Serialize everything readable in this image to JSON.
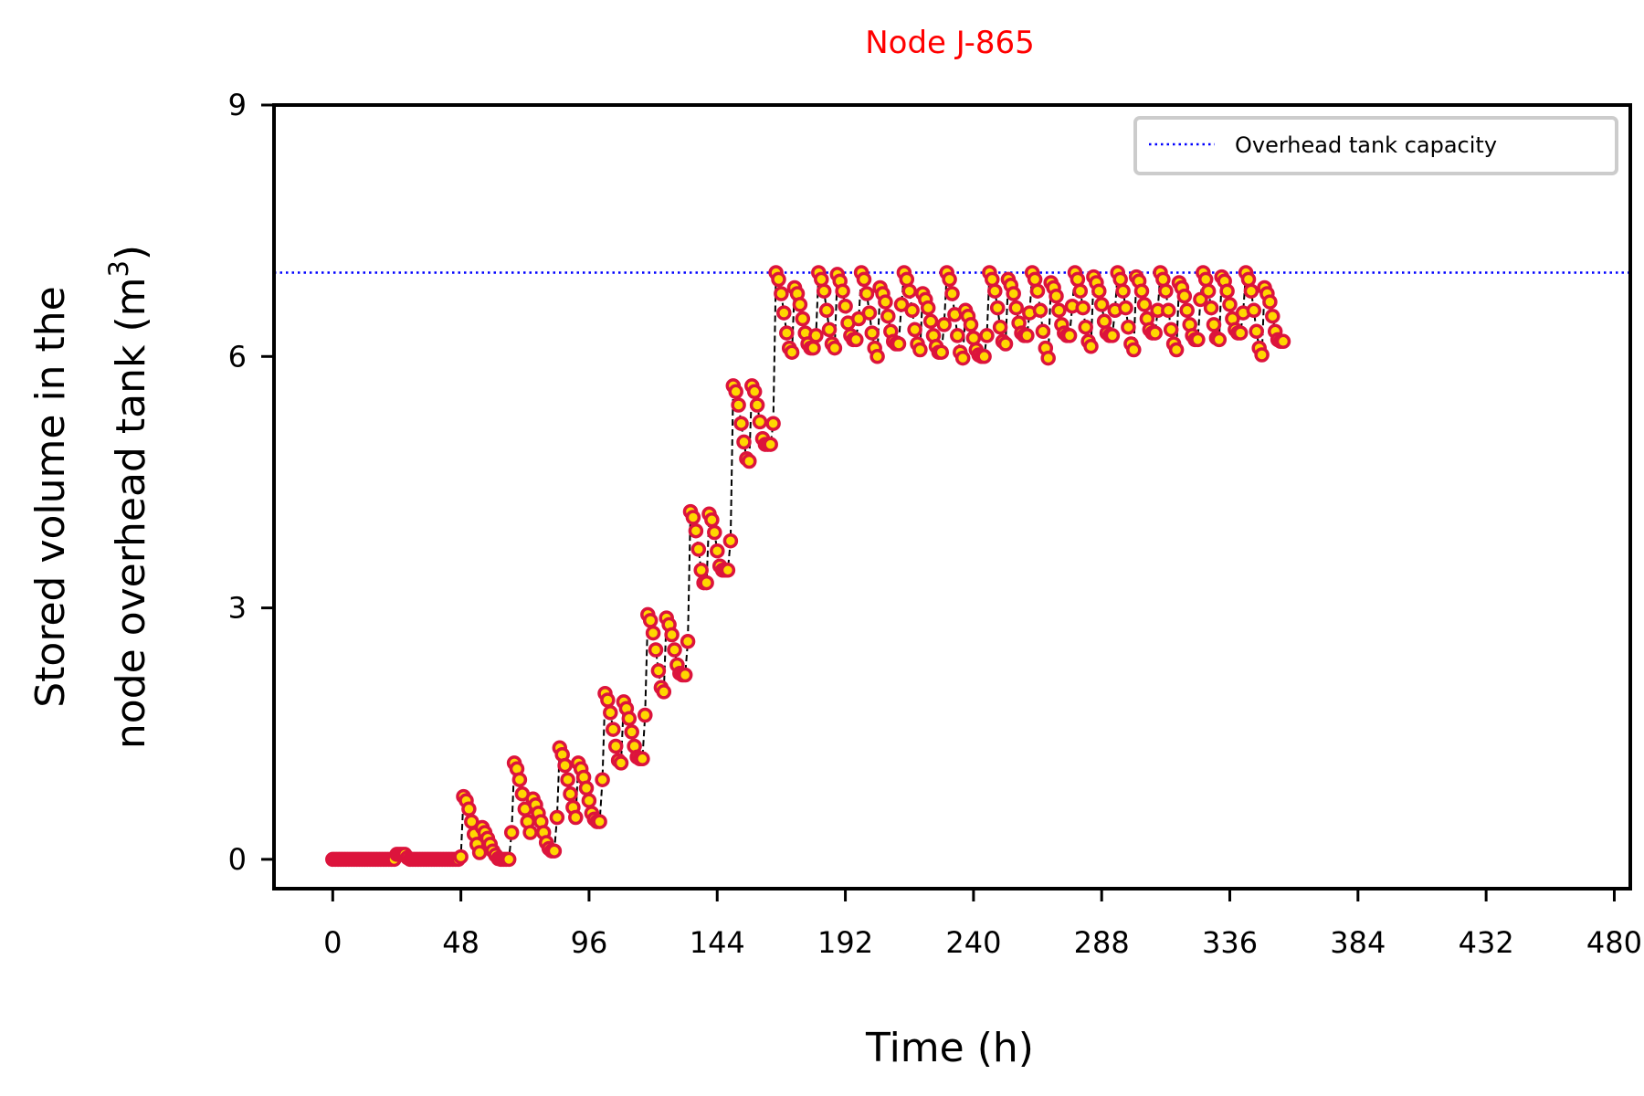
{
  "colors": {
    "title": "#ff0000",
    "marker_edge": "#dc143c",
    "marker_face": "#ffd700",
    "line": "#000000",
    "capacity_line": "#0000ff"
  },
  "chart_data": {
    "type": "line",
    "title": "Node J-865",
    "xlabel": "Time (h)",
    "ylabel_line1": "Stored volume in the",
    "ylabel_line2_prefix": "node overhead tank (m",
    "ylabel_sup": "3",
    "ylabel_suffix": ")",
    "xlim": [
      -22,
      486
    ],
    "ylim": [
      -0.35,
      9
    ],
    "x_ticks": [
      0,
      48,
      96,
      144,
      192,
      240,
      288,
      336,
      384,
      432,
      480
    ],
    "y_ticks": [
      0,
      3,
      6,
      9
    ],
    "grid": false,
    "legend_position": "top-right",
    "capacity": {
      "name": "Overhead tank capacity",
      "value": 7.0
    },
    "series": {
      "marker_style": "circle",
      "line_style": "dashed",
      "x_start": 0,
      "x_step": 1,
      "values": [
        0,
        0,
        0,
        0,
        0,
        0,
        0,
        0,
        0,
        0,
        0,
        0,
        0,
        0,
        0,
        0,
        0,
        0,
        0,
        0,
        0,
        0,
        0,
        0,
        0.06,
        0.06,
        0.06,
        0.06,
        0.02,
        0,
        0,
        0,
        0,
        0,
        0,
        0,
        0,
        0,
        0,
        0,
        0,
        0,
        0,
        0,
        0,
        0,
        0,
        0,
        0.03,
        0.75,
        0.7,
        0.6,
        0.45,
        0.3,
        0.18,
        0.08,
        0.38,
        0.32,
        0.25,
        0.18,
        0.1,
        0.05,
        0.01,
        0,
        0,
        0,
        0,
        0.32,
        1.15,
        1.08,
        0.95,
        0.78,
        0.6,
        0.45,
        0.32,
        0.72,
        0.65,
        0.55,
        0.45,
        0.32,
        0.2,
        0.13,
        0.1,
        0.1,
        0.5,
        1.33,
        1.25,
        1.12,
        0.95,
        0.78,
        0.62,
        0.5,
        1.15,
        1.08,
        0.98,
        0.85,
        0.7,
        0.55,
        0.48,
        0.45,
        0.45,
        0.95,
        1.98,
        1.9,
        1.75,
        1.55,
        1.35,
        1.18,
        1.15,
        1.88,
        1.8,
        1.68,
        1.52,
        1.35,
        1.22,
        1.2,
        1.2,
        1.72,
        2.92,
        2.85,
        2.7,
        2.5,
        2.25,
        2.05,
        2.0,
        2.88,
        2.8,
        2.68,
        2.5,
        2.32,
        2.22,
        2.2,
        2.2,
        2.6,
        4.15,
        4.08,
        3.92,
        3.7,
        3.45,
        3.3,
        3.3,
        4.12,
        4.05,
        3.9,
        3.68,
        3.5,
        3.45,
        3.45,
        3.45,
        3.8,
        5.65,
        5.58,
        5.42,
        5.2,
        4.98,
        4.78,
        4.75,
        5.65,
        5.58,
        5.42,
        5.22,
        5.02,
        4.95,
        4.95,
        4.95,
        5.2,
        7.0,
        6.92,
        6.75,
        6.52,
        6.28,
        6.1,
        6.05,
        6.82,
        6.75,
        6.62,
        6.45,
        6.28,
        6.15,
        6.1,
        6.1,
        6.25,
        7.0,
        6.92,
        6.78,
        6.55,
        6.32,
        6.15,
        6.1,
        6.98,
        6.9,
        6.78,
        6.6,
        6.4,
        6.25,
        6.2,
        6.2,
        6.45,
        7.0,
        6.92,
        6.75,
        6.52,
        6.28,
        6.1,
        6.0,
        6.82,
        6.75,
        6.65,
        6.48,
        6.3,
        6.18,
        6.15,
        6.15,
        6.62,
        7.0,
        6.92,
        6.78,
        6.55,
        6.32,
        6.15,
        6.08,
        6.75,
        6.68,
        6.58,
        6.42,
        6.25,
        6.12,
        6.05,
        6.05,
        6.38,
        7.0,
        6.92,
        6.75,
        6.5,
        6.25,
        6.05,
        5.98,
        6.55,
        6.48,
        6.38,
        6.22,
        6.08,
        6.02,
        6.0,
        6.0,
        6.25,
        7.0,
        6.92,
        6.78,
        6.58,
        6.35,
        6.18,
        6.15,
        6.92,
        6.85,
        6.75,
        6.58,
        6.4,
        6.28,
        6.25,
        6.25,
        6.52,
        7.0,
        6.92,
        6.78,
        6.55,
        6.3,
        6.1,
        5.98,
        6.88,
        6.82,
        6.72,
        6.55,
        6.38,
        6.28,
        6.25,
        6.25,
        6.6,
        7.0,
        6.92,
        6.78,
        6.58,
        6.35,
        6.18,
        6.12,
        6.95,
        6.88,
        6.78,
        6.62,
        6.42,
        6.28,
        6.25,
        6.25,
        6.55,
        7.0,
        6.92,
        6.78,
        6.58,
        6.35,
        6.15,
        6.08,
        6.95,
        6.9,
        6.78,
        6.62,
        6.45,
        6.32,
        6.28,
        6.28,
        6.55,
        7.0,
        6.92,
        6.78,
        6.55,
        6.32,
        6.15,
        6.08,
        6.88,
        6.82,
        6.72,
        6.55,
        6.38,
        6.25,
        6.2,
        6.2,
        6.68,
        7.0,
        6.92,
        6.78,
        6.58,
        6.38,
        6.22,
        6.2,
        6.95,
        6.9,
        6.78,
        6.62,
        6.45,
        6.32,
        6.28,
        6.28,
        6.52,
        7.0,
        6.92,
        6.78,
        6.55,
        6.3,
        6.1,
        6.02,
        6.82,
        6.75,
        6.65,
        6.48,
        6.3,
        6.2,
        6.18,
        6.18
      ]
    }
  }
}
